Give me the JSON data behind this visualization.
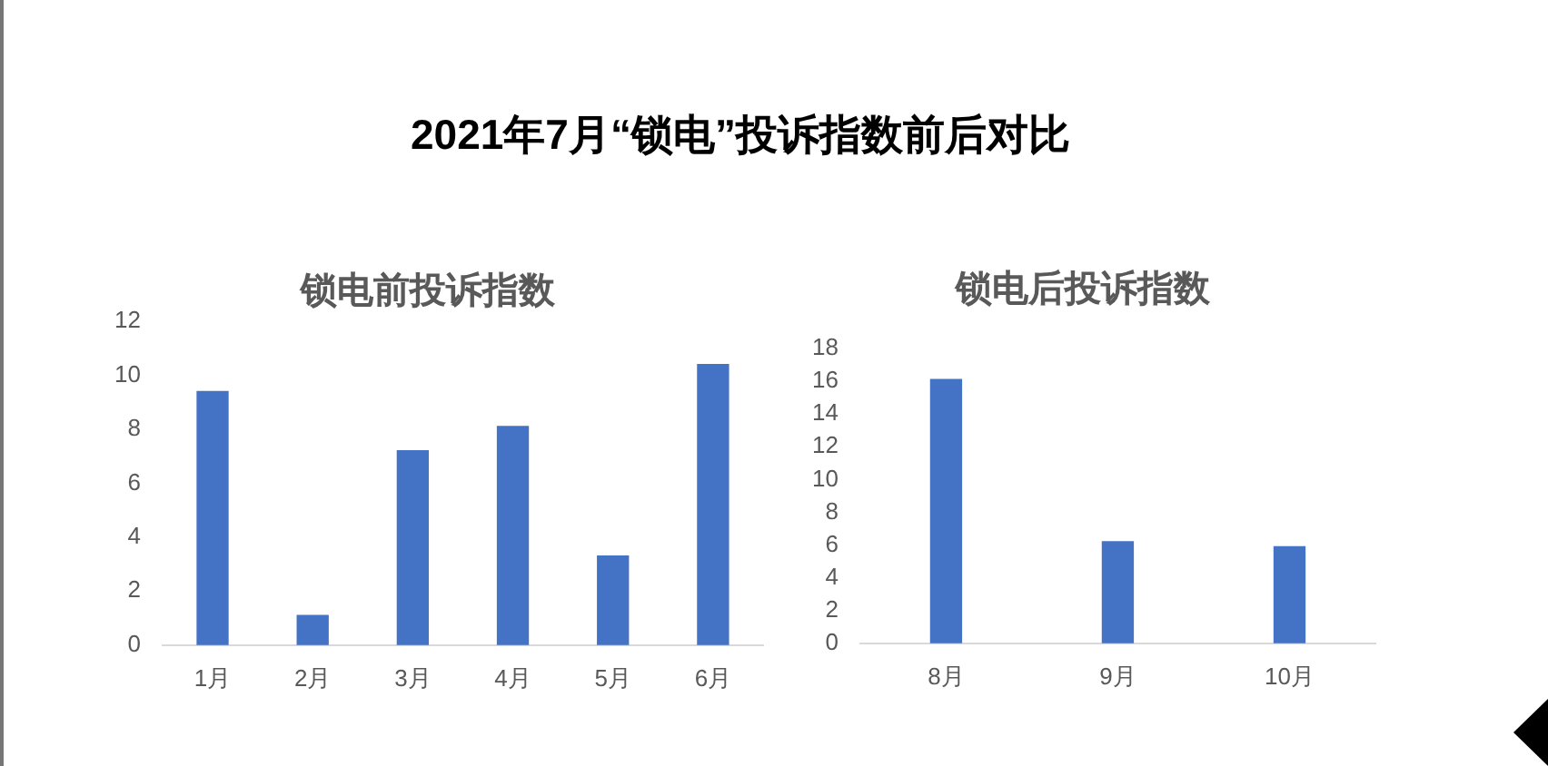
{
  "chart_data": [
    {
      "type": "other",
      "title": "2021年7月“锁电”投诉指数前后对比"
    },
    {
      "type": "bar",
      "title": "锁电前投诉指数",
      "categories": [
        "1月",
        "2月",
        "3月",
        "4月",
        "5月",
        "6月"
      ],
      "values": [
        9.4,
        1.1,
        7.2,
        8.1,
        3.3,
        10.4
      ],
      "color": "#4472c4",
      "ylim": [
        0,
        12
      ],
      "yticks": [
        0,
        2,
        4,
        6,
        8,
        10,
        12
      ],
      "grid": false,
      "legend": false
    },
    {
      "type": "bar",
      "title": "锁电后投诉指数",
      "categories": [
        "8月",
        "9月",
        "10月"
      ],
      "values": [
        16.1,
        6.2,
        5.9
      ],
      "color": "#4472c4",
      "ylim": [
        0,
        18
      ],
      "yticks": [
        0,
        2,
        4,
        6,
        8,
        10,
        12,
        14,
        16,
        18
      ],
      "grid": false,
      "legend": false
    }
  ]
}
